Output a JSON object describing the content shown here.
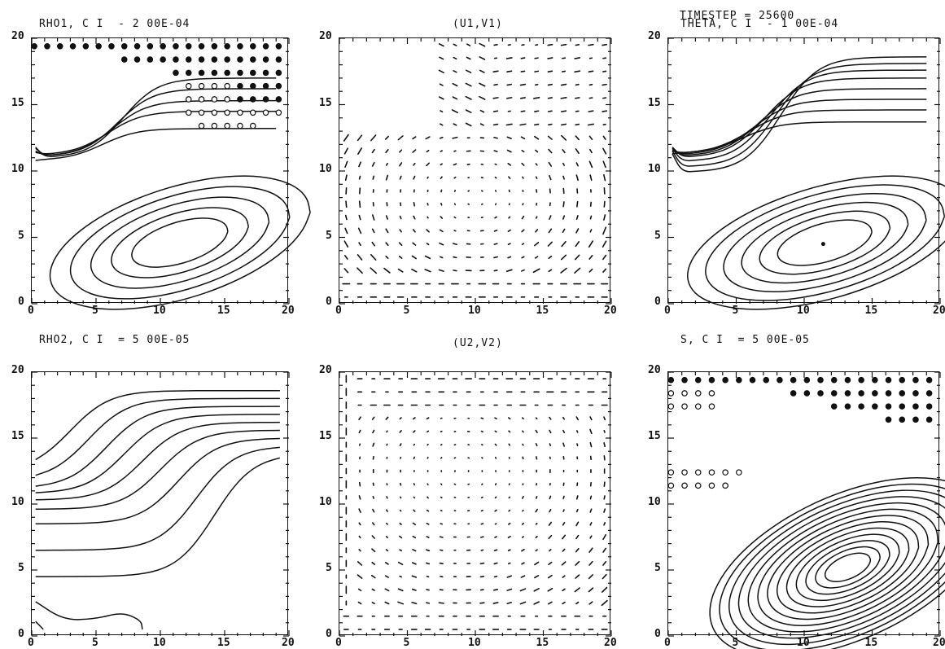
{
  "timestep_label": "TIMESTEP = 25600",
  "chart_data": [
    {
      "id": "rho1",
      "type": "contour",
      "title": "RHO1, C I  - 2 00E-04",
      "xlim": [
        0,
        20
      ],
      "ylim": [
        0,
        20
      ],
      "xticks": [
        "0",
        "5",
        "10",
        "15",
        "20"
      ],
      "yticks": [
        "0",
        "5",
        "10",
        "15",
        "20"
      ],
      "contour_interval": "2 00E-04",
      "grid": false
    },
    {
      "id": "uv1",
      "type": "vector",
      "title": "(U1,V1)",
      "xlim": [
        0,
        20
      ],
      "ylim": [
        0,
        20
      ],
      "xticks": [
        "0",
        "5",
        "10",
        "15",
        "20"
      ],
      "yticks": [
        "0",
        "5",
        "10",
        "15",
        "20"
      ],
      "grid": false
    },
    {
      "id": "theta",
      "type": "contour",
      "title": "THETA, C I  - 1 00E-04",
      "xlim": [
        0,
        20
      ],
      "ylim": [
        0,
        20
      ],
      "xticks": [
        "0",
        "5",
        "10",
        "15",
        "20"
      ],
      "yticks": [
        "0",
        "5",
        "10",
        "15",
        "20"
      ],
      "contour_interval": "1 00E-04",
      "grid": false
    },
    {
      "id": "rho2",
      "type": "contour",
      "title": "RHO2, C I  = 5 00E-05",
      "xlim": [
        0,
        20
      ],
      "ylim": [
        0,
        20
      ],
      "xticks": [
        "0",
        "5",
        "10",
        "15",
        "20"
      ],
      "yticks": [
        "0",
        "5",
        "10",
        "15",
        "20"
      ],
      "contour_interval": "5 00E-05",
      "grid": false
    },
    {
      "id": "uv2",
      "type": "vector",
      "title": "(U2,V2)",
      "xlim": [
        0,
        20
      ],
      "ylim": [
        0,
        20
      ],
      "xticks": [
        "0",
        "5",
        "10",
        "15",
        "20"
      ],
      "yticks": [
        "0",
        "5",
        "10",
        "15",
        "20"
      ],
      "grid": false
    },
    {
      "id": "s",
      "type": "contour",
      "title": "S, C I  = 5 00E-05",
      "xlim": [
        0,
        20
      ],
      "ylim": [
        0,
        20
      ],
      "xticks": [
        "0",
        "5",
        "10",
        "15",
        "20"
      ],
      "yticks": [
        "0",
        "5",
        "10",
        "15",
        "20"
      ],
      "contour_interval": "5 00E-05",
      "grid": false
    }
  ]
}
